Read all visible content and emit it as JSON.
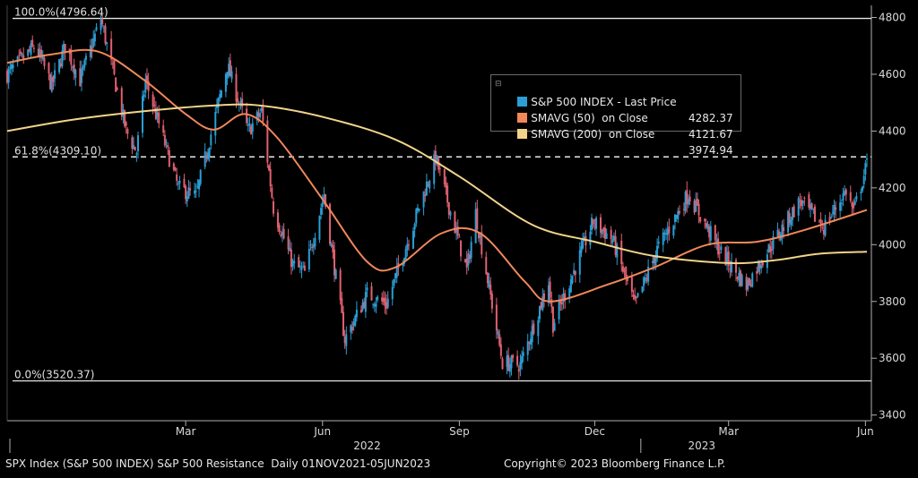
{
  "chart_data": {
    "type": "candlestick",
    "ylim": [
      3380,
      4830
    ],
    "yticks": [
      3400,
      3600,
      3800,
      4000,
      4200,
      4400,
      4600,
      4800
    ],
    "xlim": [
      "2021-11-01",
      "2023-06-05"
    ],
    "xticks": [
      {
        "label": "Mar",
        "date": "2022-03-01"
      },
      {
        "label": "Jun",
        "date": "2022-06-01"
      },
      {
        "label": "Sep",
        "date": "2022-09-01"
      },
      {
        "label": "Dec",
        "date": "2022-12-01"
      },
      {
        "label": "Mar",
        "date": "2023-03-01"
      },
      {
        "label": "Jun",
        "date": "2023-06-01"
      }
    ],
    "years": [
      {
        "label": "2022",
        "date": "2022-07-01"
      },
      {
        "label": "2023",
        "date": "2023-03-01"
      }
    ],
    "fib_levels": [
      {
        "label": "100.0%(4796.64)",
        "value": 4796.64,
        "style": "solid"
      },
      {
        "label": "61.8%(4309.10)",
        "value": 4309.1,
        "style": "dashed"
      },
      {
        "label": "0.0%(3520.37)",
        "value": 3520.37,
        "style": "solid"
      }
    ],
    "price_anchors": [
      [
        "2021-11-01",
        4600
      ],
      [
        "2021-11-20",
        4700
      ],
      [
        "2021-12-01",
        4560
      ],
      [
        "2021-12-10",
        4700
      ],
      [
        "2021-12-20",
        4580
      ],
      [
        "2022-01-03",
        4796
      ],
      [
        "2022-01-20",
        4400
      ],
      [
        "2022-01-27",
        4326
      ],
      [
        "2022-02-02",
        4580
      ],
      [
        "2022-02-24",
        4200
      ],
      [
        "2022-03-08",
        4170
      ],
      [
        "2022-03-29",
        4631
      ],
      [
        "2022-04-12",
        4400
      ],
      [
        "2022-04-21",
        4470
      ],
      [
        "2022-04-29",
        4130
      ],
      [
        "2022-05-12",
        3930
      ],
      [
        "2022-05-20",
        3900
      ],
      [
        "2022-06-02",
        4176
      ],
      [
        "2022-06-16",
        3666
      ],
      [
        "2022-07-01",
        3825
      ],
      [
        "2022-07-14",
        3790
      ],
      [
        "2022-08-16",
        4305
      ],
      [
        "2022-09-06",
        3908
      ],
      [
        "2022-09-12",
        4110
      ],
      [
        "2022-09-30",
        3585
      ],
      [
        "2022-10-12",
        3577
      ],
      [
        "2022-10-31",
        3871
      ],
      [
        "2022-11-03",
        3720
      ],
      [
        "2022-11-30",
        4080
      ],
      [
        "2022-12-13",
        4019
      ],
      [
        "2022-12-28",
        3783
      ],
      [
        "2023-01-12",
        3983
      ],
      [
        "2023-02-02",
        4179
      ],
      [
        "2023-02-24",
        3970
      ],
      [
        "2023-03-13",
        3855
      ],
      [
        "2023-03-22",
        3936
      ],
      [
        "2023-04-18",
        4154
      ],
      [
        "2023-05-04",
        4061
      ],
      [
        "2023-05-19",
        4191
      ],
      [
        "2023-05-24",
        4115
      ],
      [
        "2023-06-02",
        4282
      ]
    ],
    "series": [
      {
        "name": "SMAVG (50)  on Close",
        "color": "#f0885a",
        "points": [
          [
            "2021-11-01",
            4640
          ],
          [
            "2021-12-01",
            4670
          ],
          [
            "2022-01-01",
            4680
          ],
          [
            "2022-02-01",
            4580
          ],
          [
            "2022-03-01",
            4460
          ],
          [
            "2022-03-20",
            4405
          ],
          [
            "2022-04-10",
            4460
          ],
          [
            "2022-05-01",
            4380
          ],
          [
            "2022-06-01",
            4160
          ],
          [
            "2022-07-01",
            3940
          ],
          [
            "2022-07-20",
            3920
          ],
          [
            "2022-08-20",
            4040
          ],
          [
            "2022-09-15",
            4040
          ],
          [
            "2022-10-15",
            3870
          ],
          [
            "2022-11-01",
            3800
          ],
          [
            "2022-12-10",
            3860
          ],
          [
            "2023-01-10",
            3920
          ],
          [
            "2023-02-15",
            4000
          ],
          [
            "2023-03-20",
            4010
          ],
          [
            "2023-04-20",
            4050
          ],
          [
            "2023-06-02",
            4122
          ]
        ]
      },
      {
        "name": "SMAVG (200)  on Close",
        "color": "#f2d48a",
        "points": [
          [
            "2021-11-01",
            4400
          ],
          [
            "2021-12-15",
            4440
          ],
          [
            "2022-02-01",
            4470
          ],
          [
            "2022-03-20",
            4490
          ],
          [
            "2022-04-20",
            4490
          ],
          [
            "2022-06-01",
            4450
          ],
          [
            "2022-07-20",
            4370
          ],
          [
            "2022-09-01",
            4240
          ],
          [
            "2022-10-20",
            4070
          ],
          [
            "2022-12-01",
            4010
          ],
          [
            "2023-01-10",
            3960
          ],
          [
            "2023-03-01",
            3935
          ],
          [
            "2023-04-01",
            3945
          ],
          [
            "2023-05-01",
            3968
          ],
          [
            "2023-06-02",
            3975
          ]
        ]
      }
    ]
  },
  "legend": [
    {
      "name": "S&P 500 INDEX - Last Price",
      "value": "4282.37",
      "color": "#2a9fd6"
    },
    {
      "name": "SMAVG (50)  on Close",
      "value": "4121.67",
      "color": "#f0885a"
    },
    {
      "name": "SMAVG (200)  on Close",
      "value": "3974.94",
      "color": "#f2d48a"
    }
  ],
  "colors": {
    "up": "#2a9fd6",
    "down": "#e06070",
    "grid": "#b0b0b0"
  },
  "footer": {
    "left": "SPX Index (S&P 500 INDEX) S&P 500 Resistance  Daily 01NOV2021-05JUN2023",
    "right": "Copyright© 2023 Bloomberg Finance L.P."
  }
}
